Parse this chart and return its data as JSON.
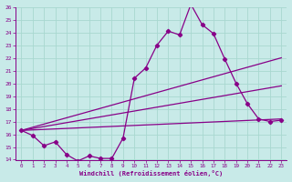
{
  "xlabel": "Windchill (Refroidissement éolien,°C)",
  "bg_color": "#c8eae8",
  "line_color": "#880088",
  "grid_color": "#a8d8d0",
  "xlim": [
    -0.5,
    23.5
  ],
  "ylim": [
    14,
    26
  ],
  "xticks": [
    0,
    1,
    2,
    3,
    4,
    5,
    6,
    7,
    8,
    9,
    10,
    11,
    12,
    13,
    14,
    15,
    16,
    17,
    18,
    19,
    20,
    21,
    22,
    23
  ],
  "yticks": [
    14,
    15,
    16,
    17,
    18,
    19,
    20,
    21,
    22,
    23,
    24,
    25,
    26
  ],
  "line1_x": [
    0,
    1,
    2,
    3,
    4,
    5,
    6,
    7,
    8,
    9,
    10,
    11,
    12,
    13,
    14,
    15,
    16,
    17,
    18,
    19,
    20,
    21,
    22,
    23
  ],
  "line1_y": [
    16.3,
    15.9,
    15.1,
    15.4,
    14.4,
    13.9,
    14.3,
    14.1,
    14.1,
    15.7,
    20.4,
    21.2,
    23.0,
    24.1,
    23.8,
    26.2,
    24.6,
    23.9,
    21.9,
    20.0,
    18.4,
    17.2,
    17.0,
    17.1
  ],
  "line2_x": [
    0,
    23
  ],
  "line2_y": [
    16.3,
    22.0
  ],
  "line3_x": [
    0,
    23
  ],
  "line3_y": [
    16.3,
    19.8
  ],
  "line4_x": [
    0,
    23
  ],
  "line4_y": [
    16.3,
    17.2
  ]
}
